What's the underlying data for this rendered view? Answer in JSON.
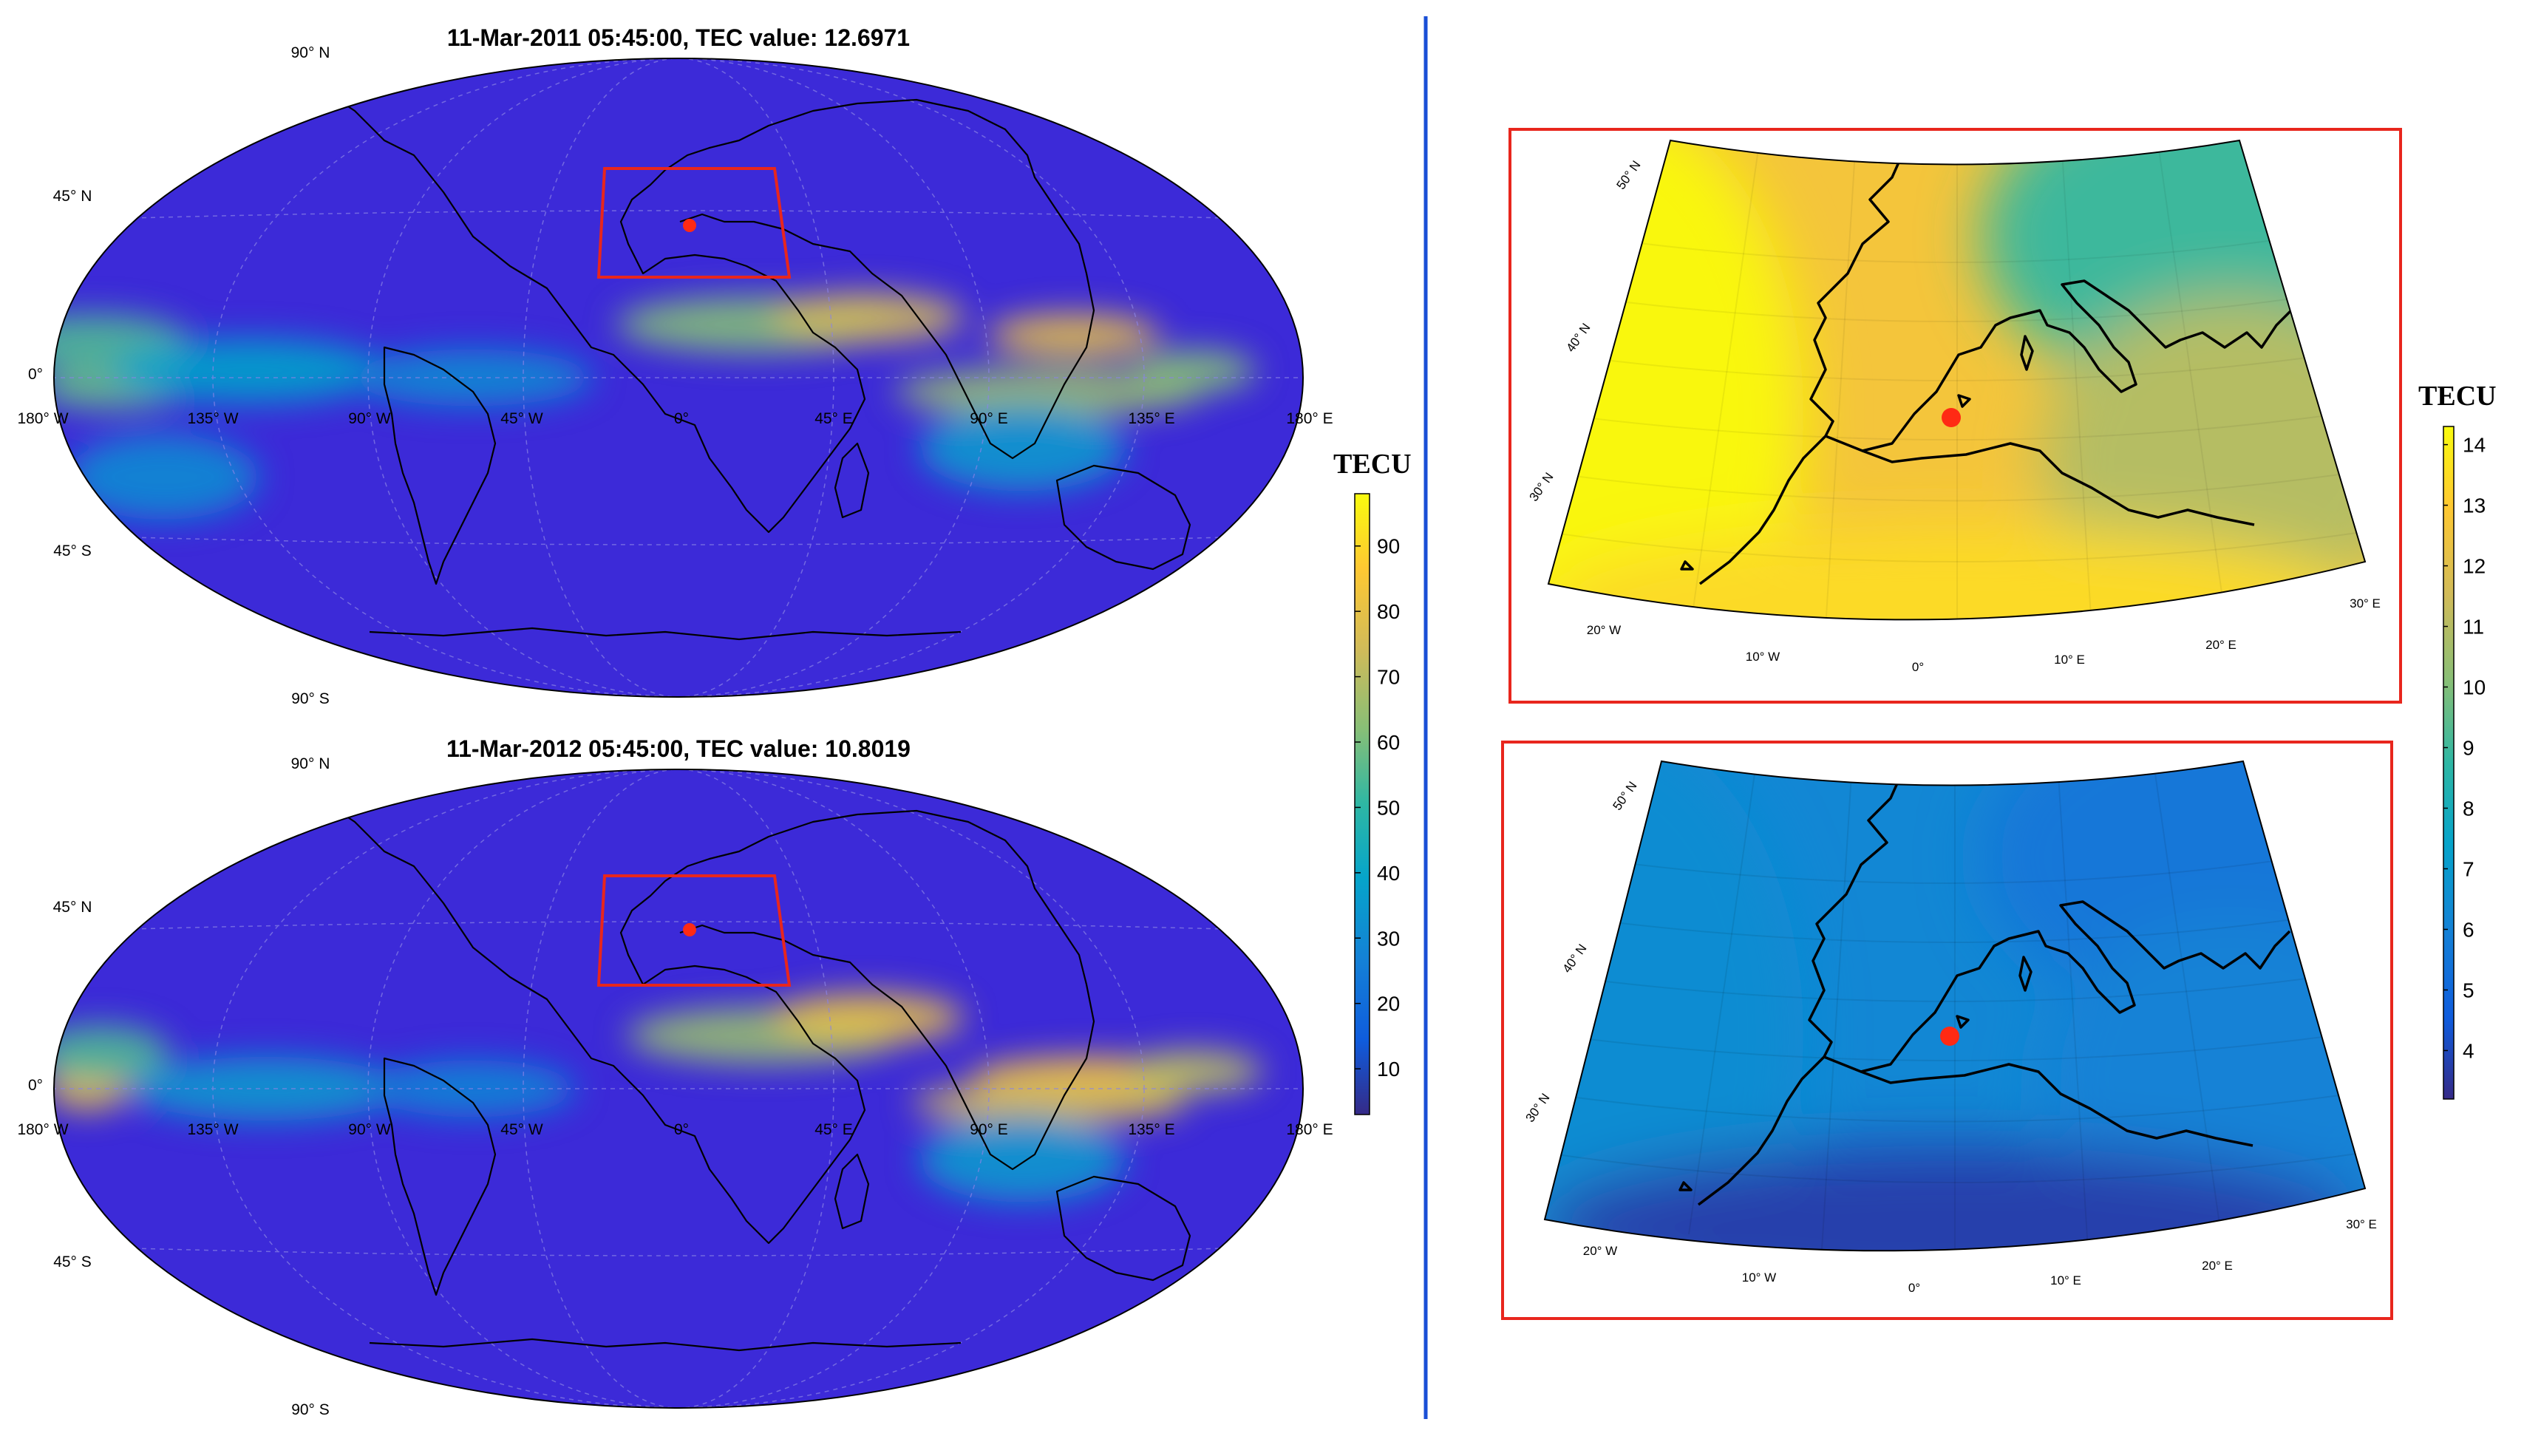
{
  "global_maps": [
    {
      "title": "11-Mar-2011 05:45:00, TEC value: 12.6971",
      "bands": [
        {
          "lon": 22,
          "lat": 15,
          "rx": 40,
          "ry": 8,
          "tec": 62
        },
        {
          "lon": 55,
          "lat": 17,
          "rx": 28,
          "ry": 7,
          "tec": 75
        },
        {
          "lon": 115,
          "lat": 12,
          "rx": 25,
          "ry": 6,
          "tec": 80
        },
        {
          "lon": 108,
          "lat": -4,
          "rx": 45,
          "ry": 7,
          "tec": 65
        },
        {
          "lon": 150,
          "lat": 2,
          "rx": 18,
          "ry": 6,
          "tec": 62
        },
        {
          "lon": -170,
          "lat": 10,
          "rx": 28,
          "ry": 8,
          "tec": 55
        },
        {
          "lon": -165,
          "lat": -3,
          "rx": 22,
          "ry": 6,
          "tec": 58
        },
        {
          "lon": -125,
          "lat": 2,
          "rx": 40,
          "ry": 9,
          "tec": 38
        },
        {
          "lon": -60,
          "lat": 0,
          "rx": 35,
          "ry": 8,
          "tec": 30
        },
        {
          "lon": 100,
          "lat": -20,
          "rx": 30,
          "ry": 12,
          "tec": 35
        },
        {
          "lon": -150,
          "lat": -28,
          "rx": 28,
          "ry": 12,
          "tec": 30
        }
      ]
    },
    {
      "title": "11-Mar-2012 05:45:00, TEC value: 10.8019",
      "bands": [
        {
          "lon": 25,
          "lat": 15,
          "rx": 40,
          "ry": 8,
          "tec": 65
        },
        {
          "lon": 55,
          "lat": 20,
          "rx": 28,
          "ry": 7,
          "tec": 80
        },
        {
          "lon": 120,
          "lat": 3,
          "rx": 35,
          "ry": 6,
          "tec": 85
        },
        {
          "lon": 108,
          "lat": -4,
          "rx": 40,
          "ry": 6,
          "tec": 75
        },
        {
          "lon": 150,
          "lat": 5,
          "rx": 20,
          "ry": 6,
          "tec": 70
        },
        {
          "lon": -172,
          "lat": 0,
          "rx": 12,
          "ry": 6,
          "tec": 80
        },
        {
          "lon": -168,
          "lat": 10,
          "rx": 20,
          "ry": 8,
          "tec": 55
        },
        {
          "lon": -120,
          "lat": 0,
          "rx": 40,
          "ry": 9,
          "tec": 35
        },
        {
          "lon": -60,
          "lat": 0,
          "rx": 30,
          "ry": 8,
          "tec": 28
        },
        {
          "lon": 100,
          "lat": -20,
          "rx": 30,
          "ry": 12,
          "tec": 35
        }
      ]
    }
  ],
  "global_lat_labels": [
    "90",
    "45",
    "0",
    "45",
    "90"
  ],
  "global_lat_suffix": [
    "N",
    "N",
    "",
    "S",
    "S"
  ],
  "global_lon_labels": [
    "180",
    "135",
    "90",
    "45",
    "0",
    "45",
    "90",
    "135",
    "180"
  ],
  "global_lon_suffix": [
    "W",
    "W",
    "W",
    "W",
    "",
    "E",
    "E",
    "E",
    "E"
  ],
  "global_colorbar": {
    "title": "TECU",
    "ticks": [
      "10",
      "20",
      "30",
      "40",
      "50",
      "60",
      "70",
      "80",
      "90"
    ],
    "min": 3,
    "max": 98
  },
  "regional_maps": [
    {
      "name": "2011",
      "west_tec": 14.2,
      "east_tec": 11.0,
      "north_east_tec": 9.0,
      "south_tec": 13.4
    },
    {
      "name": "2012",
      "west_tec": 6.4,
      "east_tec": 6.0,
      "north_east_tec": 5.6,
      "south_tec": 3.8
    }
  ],
  "regional_lat_labels": [
    "50",
    "40",
    "30"
  ],
  "regional_lat_suffix": "N",
  "regional_lon_labels": [
    "20",
    "10",
    "0",
    "10",
    "20",
    "30"
  ],
  "regional_lon_suffix": [
    "W",
    "W",
    "",
    "E",
    "E",
    "E"
  ],
  "regional_colorbar": {
    "title": "TECU",
    "ticks": [
      "4",
      "5",
      "6",
      "7",
      "8",
      "9",
      "10",
      "11",
      "12",
      "13",
      "14"
    ],
    "min": 3.2,
    "max": 14.3
  },
  "colors": {
    "box": "#e8261d",
    "marker": "#ff2a14",
    "divider": "#1a4fd6",
    "base": "#3c2ad8",
    "coast": "#000000"
  }
}
